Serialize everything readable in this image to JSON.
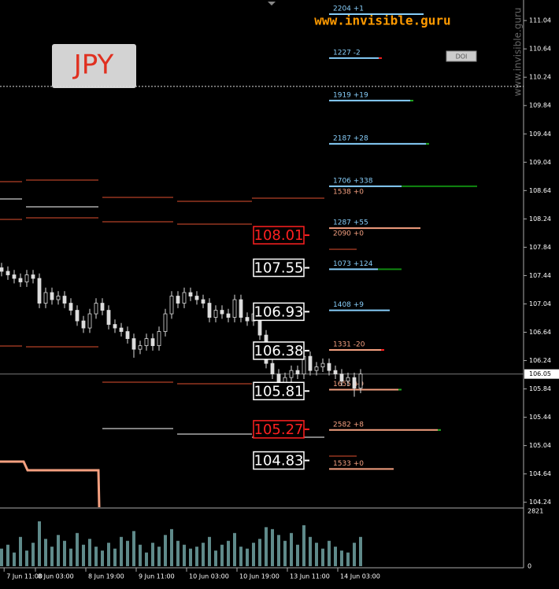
{
  "chart_data": {
    "type": "candlestick",
    "symbol": "JPY",
    "watermark": "www.invisible.guru",
    "button": "DOI",
    "ylim": [
      104.17,
      111.33
    ],
    "yticks": [
      111.04,
      110.64,
      110.24,
      109.84,
      109.44,
      109.04,
      108.64,
      108.24,
      107.84,
      107.44,
      107.04,
      106.64,
      106.24,
      105.84,
      105.44,
      105.04,
      104.64,
      104.24
    ],
    "last_price": 106.05,
    "xlim": [
      -0.25,
      82.875
    ],
    "xticks": [
      {
        "value": 0.4,
        "label": "7 Jun 11:00"
      },
      {
        "value": 5.375,
        "label": "8 Jun 03:00"
      },
      {
        "value": 13.375,
        "label": "8 Jun 19:00"
      },
      {
        "value": 21.375,
        "label": "9 Jun 11:00"
      },
      {
        "value": 29.375,
        "label": "10 Jun 03:00"
      },
      {
        "value": 37.375,
        "label": "10 Jun 19:00"
      },
      {
        "value": 45.375,
        "label": "13 Jun 11:00"
      },
      {
        "value": 53.375,
        "label": "14 Jun 03:00"
      }
    ],
    "open": [
      107.55,
      107.5,
      107.45,
      107.4,
      107.35,
      107.45,
      107.4,
      107.05,
      107.2,
      107.1,
      107.15,
      107.05,
      106.95,
      106.8,
      106.7,
      106.9,
      107.05,
      106.95,
      106.75,
      106.7,
      106.65,
      106.55,
      106.4,
      106.45,
      106.55,
      106.45,
      106.65,
      106.9,
      107.15,
      107.05,
      107.2,
      107.15,
      107.1,
      107.05,
      106.85,
      106.95,
      106.9,
      106.85,
      107.1,
      106.85,
      106.8,
      106.9,
      106.6,
      106.2,
      106.05,
      105.9,
      106.0,
      106.1,
      106.05,
      106.3,
      106.1,
      106.15,
      106.2,
      106.1,
      106.05,
      105.95,
      106.0,
      105.85
    ],
    "high": [
      107.62,
      107.57,
      107.52,
      107.47,
      107.52,
      107.52,
      107.47,
      107.27,
      107.27,
      107.22,
      107.22,
      107.12,
      107.02,
      106.87,
      106.97,
      107.12,
      107.12,
      107.02,
      106.82,
      106.77,
      106.72,
      106.62,
      106.52,
      106.62,
      106.62,
      106.72,
      106.97,
      107.22,
      107.22,
      107.27,
      107.27,
      107.22,
      107.17,
      107.12,
      107.02,
      107.02,
      106.97,
      107.17,
      107.17,
      106.92,
      106.97,
      106.97,
      106.67,
      106.27,
      106.12,
      106.07,
      106.17,
      106.17,
      106.37,
      106.37,
      106.22,
      106.27,
      106.27,
      106.17,
      106.12,
      106.07,
      106.07,
      106.12
    ],
    "low": [
      107.43,
      107.38,
      107.33,
      107.28,
      107.28,
      107.33,
      106.98,
      106.98,
      107.03,
      107.03,
      106.98,
      106.88,
      106.73,
      106.63,
      106.63,
      106.83,
      106.88,
      106.68,
      106.63,
      106.58,
      106.48,
      106.28,
      106.33,
      106.38,
      106.38,
      106.38,
      106.58,
      106.83,
      106.98,
      106.98,
      107.08,
      107.03,
      106.98,
      106.78,
      106.78,
      106.83,
      106.78,
      106.78,
      106.78,
      106.73,
      106.73,
      106.53,
      106.13,
      105.98,
      105.83,
      105.83,
      105.93,
      105.98,
      105.98,
      106.03,
      106.03,
      106.08,
      106.03,
      105.98,
      105.88,
      105.88,
      105.73,
      105.78
    ],
    "close": [
      107.5,
      107.45,
      107.4,
      107.35,
      107.45,
      107.4,
      107.05,
      107.2,
      107.1,
      107.15,
      107.05,
      106.95,
      106.8,
      106.7,
      106.9,
      107.05,
      106.95,
      106.75,
      106.7,
      106.65,
      106.55,
      106.4,
      106.45,
      106.55,
      106.45,
      106.65,
      106.9,
      107.15,
      107.05,
      107.2,
      107.15,
      107.1,
      107.05,
      106.85,
      106.95,
      106.9,
      106.85,
      107.1,
      106.85,
      106.8,
      106.9,
      106.6,
      106.2,
      106.05,
      105.9,
      106.0,
      106.1,
      106.05,
      106.3,
      106.1,
      106.15,
      106.2,
      106.1,
      106.05,
      105.95,
      106.0,
      105.85,
      106.05
    ],
    "volume": [
      900,
      1100,
      700,
      1500,
      800,
      1200,
      2300,
      1400,
      1000,
      1600,
      1300,
      900,
      1700,
      1100,
      1400,
      1000,
      800,
      1200,
      900,
      1500,
      1300,
      1800,
      1100,
      700,
      1200,
      1000,
      1600,
      1900,
      1300,
      1100,
      900,
      1000,
      1200,
      1500,
      800,
      1100,
      1300,
      1700,
      1000,
      900,
      1200,
      1400,
      2000,
      1900,
      1600,
      1300,
      1700,
      1100,
      2100,
      1500,
      1200,
      900,
      1300,
      1000,
      800,
      700,
      1200,
      1500
    ],
    "volume_ylim": [
      0,
      2821
    ],
    "volume_ticks": [
      2821,
      0
    ],
    "dotted_level": 110.11,
    "price_labels": [
      {
        "value": 108.01,
        "color": "#ff2020"
      },
      {
        "value": 107.55,
        "color": "#ffffff"
      },
      {
        "value": 106.93,
        "color": "#ffffff"
      },
      {
        "value": 106.38,
        "color": "#ffffff"
      },
      {
        "value": 105.81,
        "color": "#ffffff"
      },
      {
        "value": 105.27,
        "color": "#ff2020"
      },
      {
        "value": 104.83,
        "color": "#ffffff"
      }
    ],
    "levels": [
      {
        "label": "2204 +1",
        "price": 111.13,
        "color": "#87cefa",
        "line_color": "#87cefa",
        "tip_color": "#87cefa"
      },
      {
        "label": "1227 -2",
        "price": 110.51,
        "color": "#87cefa",
        "line_color": "#87cefa",
        "tip_color": "#ff2020"
      },
      {
        "label": "1919 +19",
        "price": 109.91,
        "color": "#87cefa",
        "line_color": "#87cefa",
        "tip_color": "#22aa22"
      },
      {
        "label": "2187 +28",
        "price": 109.3,
        "color": "#87cefa",
        "line_color": "#87cefa",
        "tip_color": "#22aa22"
      },
      {
        "label": "1706 +338",
        "price": 108.7,
        "color": "#87cefa",
        "line_color": "#87cefa",
        "tip_color": "#118811"
      },
      {
        "label": "1287 +55",
        "price": 108.11,
        "color": "#87cefa",
        "line_color": "#f4a080",
        "tip_color": "#f4a080"
      },
      {
        "label": "1073 +124",
        "price": 107.53,
        "color": "#87cefa",
        "line_color": "#87cefa",
        "tip_color": "#118811"
      },
      {
        "label": "1408 +9",
        "price": 106.95,
        "color": "#87cefa",
        "line_color": "#87cefa",
        "tip_color": "#87cefa"
      },
      {
        "label": "1331 -20",
        "price": 106.39,
        "color": "#f4a080",
        "line_color": "#f4a080",
        "tip_color": "#ff2020"
      },
      {
        "label": "1655 +0",
        "price": 105.83,
        "color": "#f4a080",
        "line_color": "#f4a080",
        "tip_color": "#22aa22"
      },
      {
        "label": "2582 +8",
        "price": 105.26,
        "color": "#f4a080",
        "line_color": "#f4a080",
        "tip_color": "#22aa22"
      },
      {
        "label": "1533 +0",
        "price": 104.71,
        "color": "#f4a080",
        "line_color": "#f4a080",
        "tip_color": "#f4a080"
      }
    ],
    "level_notes": [
      {
        "label": "1538 +0",
        "price": 108.7
      },
      {
        "label": "2090 +0",
        "price": 108.11
      }
    ]
  }
}
